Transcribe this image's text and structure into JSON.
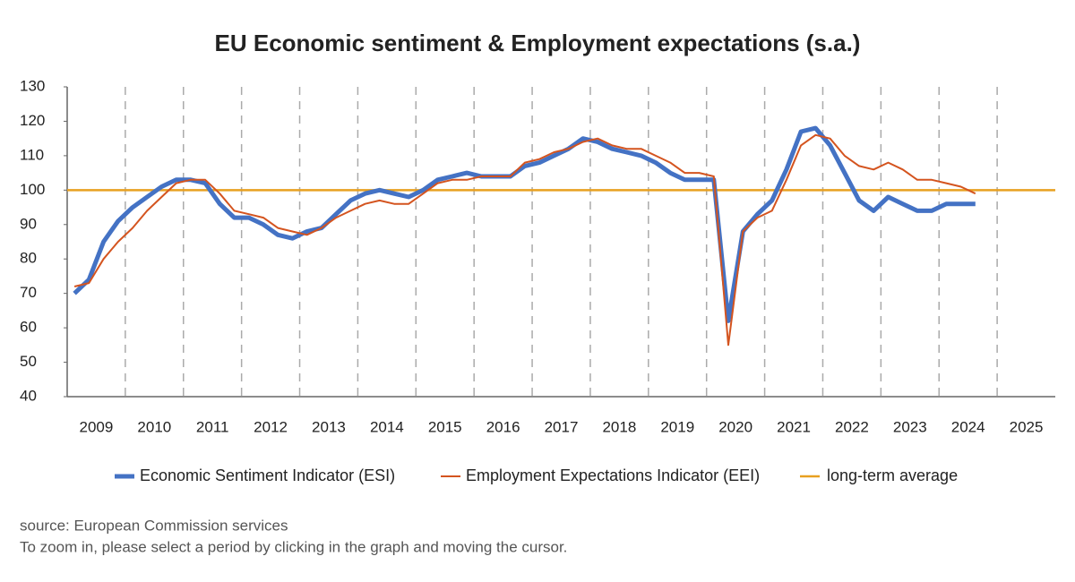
{
  "chart_data": {
    "type": "line",
    "title": "EU Economic sentiment & Employment expectations (s.a.)",
    "categories": [
      null,
      null,
      "2009",
      null,
      null,
      null,
      "2010",
      null,
      null,
      null,
      "2011",
      null,
      null,
      null,
      "2012",
      null,
      null,
      null,
      "2013",
      null,
      null,
      null,
      "2014",
      null,
      null,
      null,
      "2015",
      null,
      null,
      null,
      "2016",
      null,
      null,
      null,
      "2017",
      null,
      null,
      null,
      "2018",
      null,
      null,
      null,
      "2019",
      null,
      null,
      null,
      "2020",
      null,
      null,
      null,
      "2021",
      null,
      null,
      null,
      "2022",
      null,
      null,
      null,
      "2023",
      null,
      null,
      null,
      "2024",
      null,
      null,
      null,
      "2025",
      null
    ],
    "series": [
      {
        "name": "Economic Sentiment Indicator (ESI)",
        "color": "#4472c4",
        "values": [
          70,
          74,
          85,
          91,
          95,
          98,
          101,
          103,
          103,
          102,
          96,
          92,
          92,
          90,
          87,
          86,
          88,
          89,
          93,
          97,
          99,
          100,
          99,
          98,
          100,
          103,
          104,
          105,
          104,
          104,
          104,
          107,
          108,
          110,
          112,
          115,
          114,
          112,
          111,
          110,
          108,
          105,
          103,
          103,
          103,
          62,
          88,
          93,
          97,
          106,
          117,
          118,
          113,
          105,
          97,
          94,
          98,
          96,
          94,
          94,
          96,
          96,
          96,
          null,
          null,
          null,
          null,
          null
        ]
      },
      {
        "name": "Employment Expectations Indicator (EEI)",
        "color": "#d4541f",
        "values": [
          72,
          73,
          80,
          85,
          89,
          94,
          98,
          102,
          103,
          103,
          99,
          94,
          93,
          92,
          89,
          88,
          87,
          89,
          92,
          94,
          96,
          97,
          96,
          96,
          99,
          102,
          103,
          103,
          104,
          104,
          104,
          108,
          109,
          111,
          112,
          114,
          115,
          113,
          112,
          112,
          110,
          108,
          105,
          105,
          104,
          55,
          88,
          92,
          94,
          103,
          113,
          116,
          115,
          110,
          107,
          106,
          108,
          106,
          103,
          103,
          102,
          101,
          99,
          null,
          null,
          null,
          null,
          null
        ]
      }
    ],
    "reference_line": {
      "name": "long-term average",
      "color": "#e8a020",
      "value": 100
    },
    "ylim": [
      40,
      130
    ],
    "yticks": [
      40,
      50,
      60,
      70,
      80,
      90,
      100,
      110,
      120,
      130
    ],
    "source": "source: European Commission services",
    "note": "To zoom in, please select a period by clicking in the graph and moving the cursor."
  }
}
